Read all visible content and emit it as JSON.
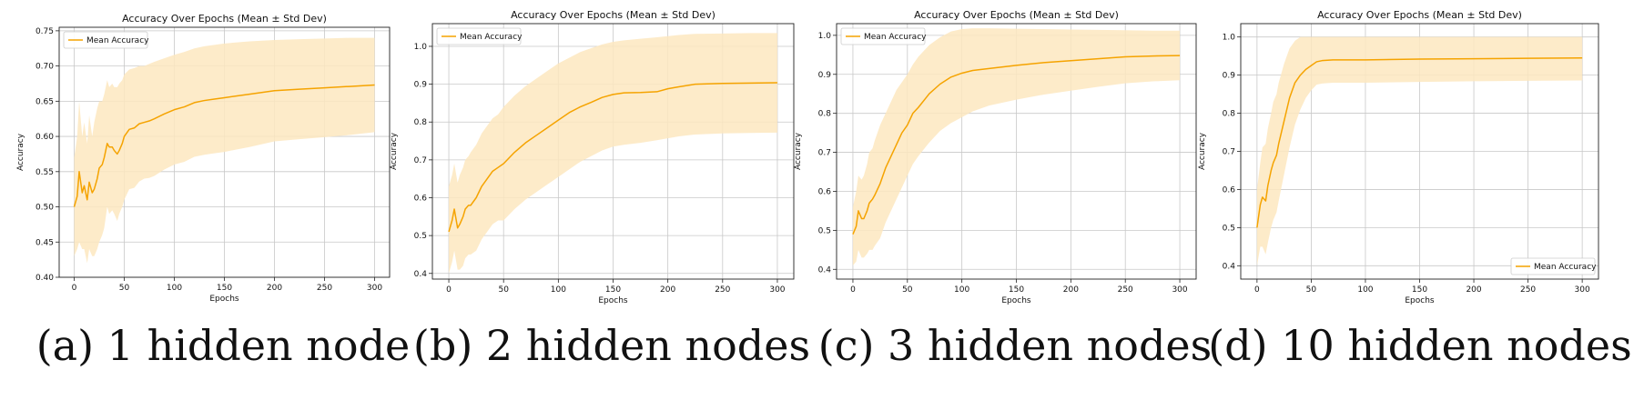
{
  "colors": {
    "line": "#f5a300",
    "band": "#fde7bf",
    "grid": "#c8c8c8"
  },
  "chart_data": [
    {
      "type": "line",
      "title": "Accuracy Over Epochs (Mean ± Std Dev)",
      "xlabel": "Epochs",
      "ylabel": "Accuracy",
      "caption": "(a) 1 hidden node",
      "legend_label": "Mean Accuracy",
      "legend_position": "upper left",
      "grid": true,
      "xlim": [
        -15,
        315
      ],
      "ylim": [
        0.4,
        0.755
      ],
      "xticks": [
        0,
        50,
        100,
        150,
        200,
        250,
        300
      ],
      "yticks": [
        0.4,
        0.45,
        0.5,
        0.55,
        0.6,
        0.65,
        0.7,
        0.75
      ],
      "ytick_labels": [
        "0.40",
        "0.45",
        "0.50",
        "0.55",
        "0.60",
        "0.65",
        "0.70",
        "0.75"
      ],
      "x": [
        0,
        3,
        5,
        8,
        10,
        13,
        15,
        18,
        20,
        23,
        25,
        28,
        30,
        33,
        35,
        38,
        40,
        43,
        45,
        48,
        50,
        55,
        60,
        65,
        70,
        75,
        80,
        90,
        100,
        110,
        120,
        130,
        140,
        150,
        175,
        200,
        225,
        250,
        275,
        300
      ],
      "mean": [
        0.5,
        0.515,
        0.55,
        0.52,
        0.53,
        0.51,
        0.535,
        0.52,
        0.525,
        0.54,
        0.555,
        0.56,
        0.57,
        0.59,
        0.585,
        0.585,
        0.58,
        0.575,
        0.58,
        0.59,
        0.6,
        0.61,
        0.612,
        0.618,
        0.62,
        0.622,
        0.625,
        0.632,
        0.638,
        0.642,
        0.648,
        0.651,
        0.653,
        0.655,
        0.66,
        0.665,
        0.667,
        0.669,
        0.671,
        0.673
      ],
      "upper": [
        0.57,
        0.6,
        0.65,
        0.6,
        0.62,
        0.59,
        0.63,
        0.6,
        0.62,
        0.64,
        0.65,
        0.65,
        0.66,
        0.68,
        0.67,
        0.675,
        0.67,
        0.67,
        0.675,
        0.68,
        0.688,
        0.695,
        0.697,
        0.7,
        0.7,
        0.703,
        0.706,
        0.711,
        0.716,
        0.72,
        0.725,
        0.728,
        0.73,
        0.732,
        0.735,
        0.737,
        0.738,
        0.739,
        0.74,
        0.74
      ],
      "lower": [
        0.43,
        0.44,
        0.45,
        0.44,
        0.44,
        0.42,
        0.44,
        0.43,
        0.43,
        0.44,
        0.45,
        0.46,
        0.47,
        0.5,
        0.49,
        0.495,
        0.49,
        0.48,
        0.49,
        0.5,
        0.51,
        0.525,
        0.527,
        0.536,
        0.54,
        0.541,
        0.544,
        0.553,
        0.56,
        0.564,
        0.571,
        0.574,
        0.576,
        0.578,
        0.585,
        0.593,
        0.596,
        0.599,
        0.602,
        0.606
      ]
    },
    {
      "type": "line",
      "title": "Accuracy Over Epochs (Mean ± Std Dev)",
      "xlabel": "Epochs",
      "ylabel": "Accuracy",
      "caption": "(b) 2 hidden nodes",
      "legend_label": "Mean Accuracy",
      "legend_position": "upper left",
      "grid": true,
      "xlim": [
        -15,
        315
      ],
      "ylim": [
        0.385,
        1.06
      ],
      "xticks": [
        0,
        50,
        100,
        150,
        200,
        250,
        300
      ],
      "yticks": [
        0.4,
        0.5,
        0.6,
        0.7,
        0.8,
        0.9,
        1.0
      ],
      "ytick_labels": [
        "0.4",
        "0.5",
        "0.6",
        "0.7",
        "0.8",
        "0.9",
        "1.0"
      ],
      "x": [
        0,
        3,
        5,
        8,
        10,
        13,
        15,
        18,
        20,
        25,
        30,
        35,
        40,
        45,
        50,
        60,
        70,
        80,
        90,
        100,
        110,
        120,
        130,
        140,
        150,
        160,
        175,
        190,
        200,
        210,
        225,
        250,
        275,
        300
      ],
      "mean": [
        0.51,
        0.54,
        0.57,
        0.52,
        0.53,
        0.55,
        0.57,
        0.58,
        0.58,
        0.6,
        0.63,
        0.65,
        0.67,
        0.68,
        0.69,
        0.72,
        0.745,
        0.765,
        0.785,
        0.805,
        0.825,
        0.84,
        0.852,
        0.865,
        0.873,
        0.877,
        0.878,
        0.88,
        0.888,
        0.893,
        0.9,
        0.902,
        0.903,
        0.904
      ],
      "upper": [
        0.63,
        0.66,
        0.69,
        0.64,
        0.66,
        0.68,
        0.7,
        0.71,
        0.72,
        0.74,
        0.77,
        0.79,
        0.81,
        0.82,
        0.84,
        0.87,
        0.895,
        0.915,
        0.935,
        0.955,
        0.97,
        0.985,
        0.995,
        1.005,
        1.012,
        1.016,
        1.02,
        1.024,
        1.027,
        1.03,
        1.033,
        1.034,
        1.035,
        1.035
      ],
      "lower": [
        0.4,
        0.43,
        0.46,
        0.41,
        0.41,
        0.42,
        0.44,
        0.45,
        0.45,
        0.46,
        0.49,
        0.51,
        0.53,
        0.54,
        0.54,
        0.57,
        0.595,
        0.615,
        0.635,
        0.655,
        0.675,
        0.695,
        0.71,
        0.725,
        0.735,
        0.74,
        0.745,
        0.752,
        0.757,
        0.762,
        0.767,
        0.77,
        0.771,
        0.772
      ]
    },
    {
      "type": "line",
      "title": "Accuracy Over Epochs (Mean ± Std Dev)",
      "xlabel": "Epochs",
      "ylabel": "Accuracy",
      "caption": "(c) 3 hidden nodes",
      "legend_label": "Mean Accuracy",
      "legend_position": "upper left",
      "grid": true,
      "xlim": [
        -15,
        315
      ],
      "ylim": [
        0.375,
        1.03
      ],
      "xticks": [
        0,
        50,
        100,
        150,
        200,
        250,
        300
      ],
      "yticks": [
        0.4,
        0.5,
        0.6,
        0.7,
        0.8,
        0.9,
        1.0
      ],
      "ytick_labels": [
        "0.4",
        "0.5",
        "0.6",
        "0.7",
        "0.8",
        "0.9",
        "1.0"
      ],
      "x": [
        0,
        3,
        5,
        8,
        10,
        13,
        15,
        18,
        20,
        25,
        30,
        35,
        40,
        45,
        50,
        55,
        60,
        70,
        80,
        90,
        100,
        110,
        125,
        150,
        175,
        200,
        225,
        250,
        275,
        300
      ],
      "mean": [
        0.49,
        0.51,
        0.55,
        0.53,
        0.53,
        0.55,
        0.57,
        0.58,
        0.59,
        0.62,
        0.66,
        0.69,
        0.72,
        0.75,
        0.77,
        0.8,
        0.815,
        0.85,
        0.875,
        0.893,
        0.903,
        0.91,
        0.915,
        0.923,
        0.93,
        0.935,
        0.94,
        0.945,
        0.947,
        0.948
      ],
      "upper": [
        0.56,
        0.6,
        0.64,
        0.63,
        0.64,
        0.67,
        0.7,
        0.71,
        0.73,
        0.77,
        0.8,
        0.83,
        0.86,
        0.88,
        0.9,
        0.925,
        0.945,
        0.975,
        0.995,
        1.01,
        1.016,
        1.018,
        1.018,
        1.017,
        1.016,
        1.015,
        1.014,
        1.013,
        1.012,
        1.012
      ],
      "lower": [
        0.41,
        0.42,
        0.45,
        0.43,
        0.43,
        0.44,
        0.45,
        0.45,
        0.46,
        0.48,
        0.52,
        0.55,
        0.58,
        0.61,
        0.64,
        0.67,
        0.69,
        0.725,
        0.755,
        0.775,
        0.79,
        0.805,
        0.82,
        0.835,
        0.848,
        0.858,
        0.868,
        0.877,
        0.882,
        0.885
      ]
    },
    {
      "type": "line",
      "title": "Accuracy Over Epochs (Mean ± Std Dev)",
      "xlabel": "Epochs",
      "ylabel": "Accuracy",
      "caption": "(d) 10 hidden nodes",
      "legend_label": "Mean Accuracy",
      "legend_position": "lower right",
      "grid": true,
      "xlim": [
        -15,
        315
      ],
      "ylim": [
        0.365,
        1.035
      ],
      "xticks": [
        0,
        50,
        100,
        150,
        200,
        250,
        300
      ],
      "yticks": [
        0.4,
        0.5,
        0.6,
        0.7,
        0.8,
        0.9,
        1.0
      ],
      "ytick_labels": [
        "0.4",
        "0.5",
        "0.6",
        "0.7",
        "0.8",
        "0.9",
        "1.0"
      ],
      "x": [
        0,
        3,
        5,
        8,
        10,
        13,
        15,
        18,
        20,
        25,
        30,
        35,
        40,
        45,
        50,
        55,
        60,
        70,
        80,
        100,
        150,
        200,
        250,
        300
      ],
      "mean": [
        0.5,
        0.56,
        0.58,
        0.57,
        0.61,
        0.65,
        0.67,
        0.69,
        0.72,
        0.78,
        0.84,
        0.88,
        0.9,
        0.915,
        0.925,
        0.935,
        0.938,
        0.94,
        0.94,
        0.94,
        0.942,
        0.943,
        0.944,
        0.945
      ],
      "upper": [
        0.6,
        0.67,
        0.71,
        0.72,
        0.76,
        0.8,
        0.83,
        0.85,
        0.88,
        0.93,
        0.97,
        0.99,
        1.0,
        1.0,
        1.0,
        1.0,
        1.0,
        1.0,
        1.0,
        1.0,
        1.0,
        1.0,
        1.0,
        1.0
      ],
      "lower": [
        0.4,
        0.45,
        0.45,
        0.43,
        0.46,
        0.5,
        0.52,
        0.54,
        0.57,
        0.64,
        0.71,
        0.77,
        0.81,
        0.84,
        0.86,
        0.875,
        0.878,
        0.88,
        0.88,
        0.88,
        0.882,
        0.884,
        0.885,
        0.886
      ]
    }
  ]
}
